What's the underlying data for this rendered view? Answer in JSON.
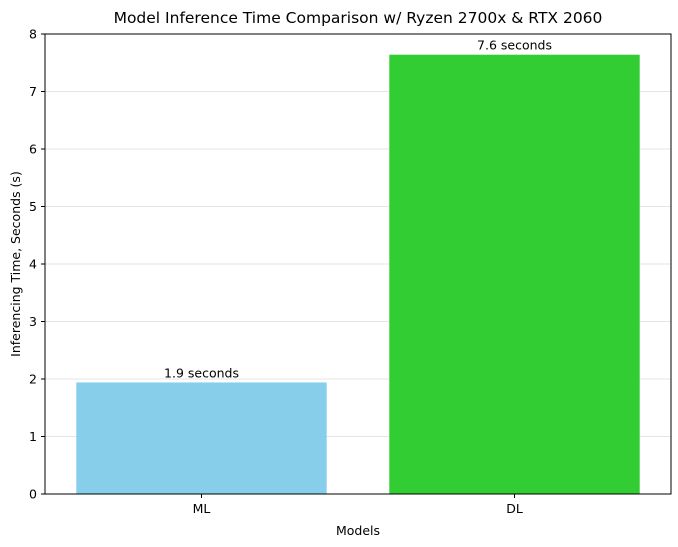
{
  "chart_data": {
    "type": "bar",
    "title": "Model Inference Time Comparison w/ Ryzen 2700x & RTX 2060",
    "xlabel": "Models",
    "ylabel": "Inferencing Time, Seconds (s)",
    "categories": [
      "ML",
      "DL"
    ],
    "values": [
      1.94,
      7.64
    ],
    "data_labels": [
      "1.9 seconds",
      "7.6 seconds"
    ],
    "colors": [
      "#87ceeb",
      "#32cd32"
    ],
    "ylim": [
      0,
      8
    ],
    "yticks": [
      0,
      1,
      2,
      3,
      4,
      5,
      6,
      7,
      8
    ],
    "grid": "y-axis"
  }
}
